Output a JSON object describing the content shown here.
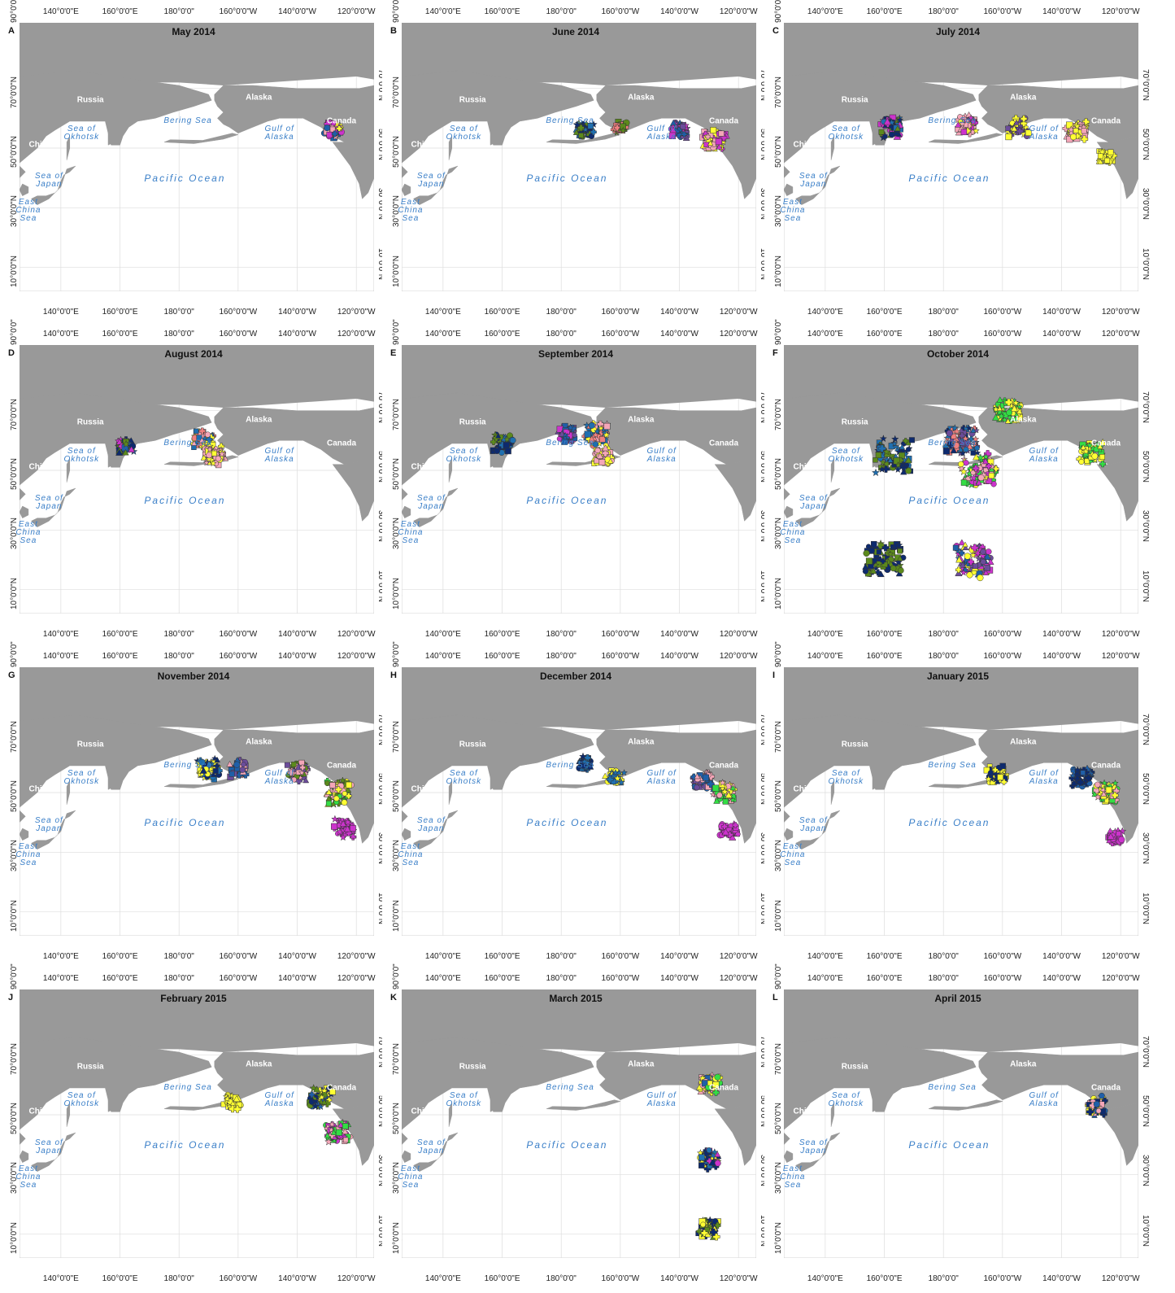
{
  "figure": {
    "panels": [
      {
        "letter": "A",
        "title": "May 2014",
        "clusters": [
          {
            "lon": -128,
            "lat": 56,
            "spread": 1,
            "colors": [
              "#cc33cc",
              "#f4a6b8",
              "#ffff33",
              "#1f5fa8"
            ]
          }
        ]
      },
      {
        "letter": "B",
        "title": "June 2014",
        "clusters": [
          {
            "lon": -172,
            "lat": 56,
            "spread": 1,
            "colors": [
              "#0d2a6e",
              "#1f6fb0",
              "#5c8a1c"
            ]
          },
          {
            "lon": -160,
            "lat": 57,
            "spread": 0.6,
            "colors": [
              "#5c8a1c",
              "#f08080"
            ]
          },
          {
            "lon": -140,
            "lat": 56,
            "spread": 1,
            "colors": [
              "#6b4c9a",
              "#cc33cc",
              "#1f5fa8"
            ]
          },
          {
            "lon": -128,
            "lat": 53,
            "spread": 1.5,
            "colors": [
              "#f4a6b8",
              "#ffff33",
              "#cc33cc"
            ]
          }
        ]
      },
      {
        "letter": "C",
        "title": "July 2014",
        "clusters": [
          {
            "lon": 162,
            "lat": 57,
            "spread": 1.3,
            "colors": [
              "#0d2a6e",
              "#1f6fb0",
              "#5c8a1c",
              "#cc33cc"
            ]
          },
          {
            "lon": -172,
            "lat": 58,
            "spread": 1.2,
            "colors": [
              "#f4a6b8",
              "#ffff33",
              "#cc33cc"
            ]
          },
          {
            "lon": -155,
            "lat": 57,
            "spread": 1.2,
            "colors": [
              "#ffff33",
              "#6b4c9a"
            ]
          },
          {
            "lon": -135,
            "lat": 56,
            "spread": 1.2,
            "colors": [
              "#ffff33",
              "#f4a6b8"
            ]
          },
          {
            "lon": -125,
            "lat": 47,
            "spread": 0.8,
            "colors": [
              "#ffff33"
            ]
          }
        ]
      },
      {
        "letter": "D",
        "title": "August 2014",
        "clusters": [
          {
            "lon": 162,
            "lat": 58,
            "spread": 1,
            "colors": [
              "#1f5fa8",
              "#0d2a6e",
              "#5c8a1c",
              "#cc33cc"
            ]
          },
          {
            "lon": -172,
            "lat": 60,
            "spread": 1.3,
            "colors": [
              "#1f6fb0",
              "#f4a6b8",
              "#f08080",
              "#ffff33"
            ]
          },
          {
            "lon": -168,
            "lat": 55,
            "spread": 1.2,
            "colors": [
              "#ffff33",
              "#f4a6b8"
            ]
          }
        ]
      },
      {
        "letter": "E",
        "title": "September 2014",
        "clusters": [
          {
            "lon": 160,
            "lat": 59,
            "spread": 1.2,
            "colors": [
              "#0d2a6e",
              "#5c8a1c",
              "#1f6fb0"
            ]
          },
          {
            "lon": -178,
            "lat": 62,
            "spread": 1,
            "colors": [
              "#cc33cc",
              "#6b4c9a",
              "#1f5fa8"
            ]
          },
          {
            "lon": -168,
            "lat": 62,
            "spread": 1.5,
            "colors": [
              "#f08080",
              "#f4a6b8",
              "#1f6fb0",
              "#ffff33"
            ]
          },
          {
            "lon": -166,
            "lat": 55,
            "spread": 1.2,
            "colors": [
              "#ffff33",
              "#f4a6b8"
            ]
          }
        ]
      },
      {
        "letter": "F",
        "title": "October 2014",
        "clusters": [
          {
            "lon": 163,
            "lat": 55,
            "spread": 2.4,
            "colors": [
              "#0d2a6e",
              "#5c8a1c",
              "#1f6fb0"
            ]
          },
          {
            "lon": 160,
            "lat": 20,
            "spread": 2.4,
            "colors": [
              "#5c8a1c",
              "#0d2a6e"
            ]
          },
          {
            "lon": -174,
            "lat": 60,
            "spread": 2,
            "colors": [
              "#1f6fb0",
              "#0d2a6e",
              "#6b4c9a",
              "#f08080"
            ]
          },
          {
            "lon": -168,
            "lat": 50,
            "spread": 2.2,
            "colors": [
              "#f4a6b8",
              "#ffff33",
              "#33dd44",
              "#cc33cc"
            ]
          },
          {
            "lon": -170,
            "lat": 20,
            "spread": 2.4,
            "colors": [
              "#cc33cc",
              "#6b4c9a",
              "#ffff33",
              "#1f5fa8"
            ]
          },
          {
            "lon": -158,
            "lat": 70,
            "spread": 1.6,
            "colors": [
              "#ffff33",
              "#33dd44"
            ]
          },
          {
            "lon": -130,
            "lat": 56,
            "spread": 1.5,
            "colors": [
              "#33dd44",
              "#ffff33"
            ]
          }
        ]
      },
      {
        "letter": "G",
        "title": "November 2014",
        "clusters": [
          {
            "lon": -170,
            "lat": 58,
            "spread": 1.4,
            "colors": [
              "#0d2a6e",
              "#1f6fb0",
              "#ffff33"
            ]
          },
          {
            "lon": -160,
            "lat": 58,
            "spread": 1,
            "colors": [
              "#6b4c9a",
              "#1f5fa8",
              "#f4a6b8"
            ]
          },
          {
            "lon": -140,
            "lat": 57,
            "spread": 1.2,
            "colors": [
              "#6b4c9a",
              "#f4a6b8",
              "#5c8a1c"
            ]
          },
          {
            "lon": -126,
            "lat": 50,
            "spread": 1.6,
            "colors": [
              "#ffff33",
              "#f4a6b8",
              "#33dd44",
              "#5c8a1c"
            ]
          },
          {
            "lon": -124,
            "lat": 38,
            "spread": 1.2,
            "colors": [
              "#cc33cc"
            ]
          }
        ]
      },
      {
        "letter": "H",
        "title": "December 2014",
        "clusters": [
          {
            "lon": -172,
            "lat": 60,
            "spread": 0.7,
            "colors": [
              "#0d2a6e",
              "#1f6fb0"
            ]
          },
          {
            "lon": -162,
            "lat": 55,
            "spread": 1,
            "colors": [
              "#1f6fb0",
              "#ffff33"
            ]
          },
          {
            "lon": -132,
            "lat": 54,
            "spread": 1.2,
            "colors": [
              "#1f5fa8",
              "#f4a6b8",
              "#6b4c9a"
            ]
          },
          {
            "lon": -125,
            "lat": 50,
            "spread": 1.3,
            "colors": [
              "#ffff33",
              "#33dd44",
              "#f4a6b8"
            ]
          },
          {
            "lon": -123,
            "lat": 37,
            "spread": 1,
            "colors": [
              "#cc33cc"
            ]
          }
        ]
      },
      {
        "letter": "I",
        "title": "January 2015",
        "clusters": [
          {
            "lon": -162,
            "lat": 56,
            "spread": 1.2,
            "colors": [
              "#0d2a6e",
              "#ffff33"
            ]
          },
          {
            "lon": -133,
            "lat": 55,
            "spread": 1.2,
            "colors": [
              "#1f5fa8",
              "#0d2a6e"
            ]
          },
          {
            "lon": -125,
            "lat": 50,
            "spread": 1.4,
            "colors": [
              "#ffff33",
              "#f4a6b8",
              "#33dd44"
            ]
          },
          {
            "lon": -122,
            "lat": 35,
            "spread": 0.8,
            "colors": [
              "#cc33cc"
            ]
          }
        ]
      },
      {
        "letter": "J",
        "title": "February 2015",
        "clusters": [
          {
            "lon": -162,
            "lat": 54,
            "spread": 1,
            "colors": [
              "#ffff33"
            ]
          },
          {
            "lon": -132,
            "lat": 56,
            "spread": 1.5,
            "colors": [
              "#ffff33",
              "#1f5fa8",
              "#0d2a6e",
              "#5c8a1c"
            ]
          },
          {
            "lon": -126,
            "lat": 44,
            "spread": 1.4,
            "colors": [
              "#f4a6b8",
              "#cc33cc",
              "#33dd44"
            ]
          }
        ]
      },
      {
        "letter": "K",
        "title": "March 2015",
        "clusters": [
          {
            "lon": -130,
            "lat": 60,
            "spread": 1.2,
            "colors": [
              "#1f5fa8",
              "#f4a6b8",
              "#33dd44",
              "#ffff33"
            ]
          },
          {
            "lon": -130,
            "lat": 35,
            "spread": 1.2,
            "colors": [
              "#ffff33",
              "#0d2a6e",
              "#cc33cc",
              "#1f6fb0"
            ]
          },
          {
            "lon": -130,
            "lat": 12,
            "spread": 1.2,
            "colors": [
              "#5c8a1c",
              "#0d2a6e",
              "#ffff33"
            ]
          }
        ]
      },
      {
        "letter": "L",
        "title": "April 2015",
        "clusters": [
          {
            "lon": -128,
            "lat": 53,
            "spread": 1.2,
            "colors": [
              "#f4a6b8",
              "#ffff33",
              "#1f5fa8",
              "#0d2a6e"
            ]
          }
        ]
      }
    ],
    "corner_label": "90°0'0\"",
    "top_ticks": [
      "140°0'0\"E",
      "160°0'0\"E",
      "180°0'0\"",
      "160°0'0\"W",
      "140°0'0\"W",
      "120°0'0\"W"
    ],
    "bottom_ticks": [
      "140°0'0\"E",
      "160°0'0\"E",
      "180°0'0\"",
      "160°0'0\"W",
      "140°0'0\"W",
      "120°0'0\"W"
    ],
    "lat_ticks": [
      "70°0'0\"N",
      "50°0'0\"N",
      "30°0'0\"N",
      "10°0'0\"N"
    ],
    "place_labels": {
      "russia": "Russia",
      "alaska": "Alaska",
      "canada": "Canada",
      "china": "China",
      "bering": "Bering Sea",
      "okhotsk": "Sea of\nOkhotsk",
      "gulf": "Gulf of\nAlaska",
      "pacific": "Pacific Ocean",
      "japan": "Sea of\nJapan",
      "eastchina": "East\nChina\nSea"
    },
    "colors": {
      "land": "#999999",
      "water": "#ffffff",
      "grid": "#dddddd",
      "sea_text": "#3a7fc8"
    }
  }
}
